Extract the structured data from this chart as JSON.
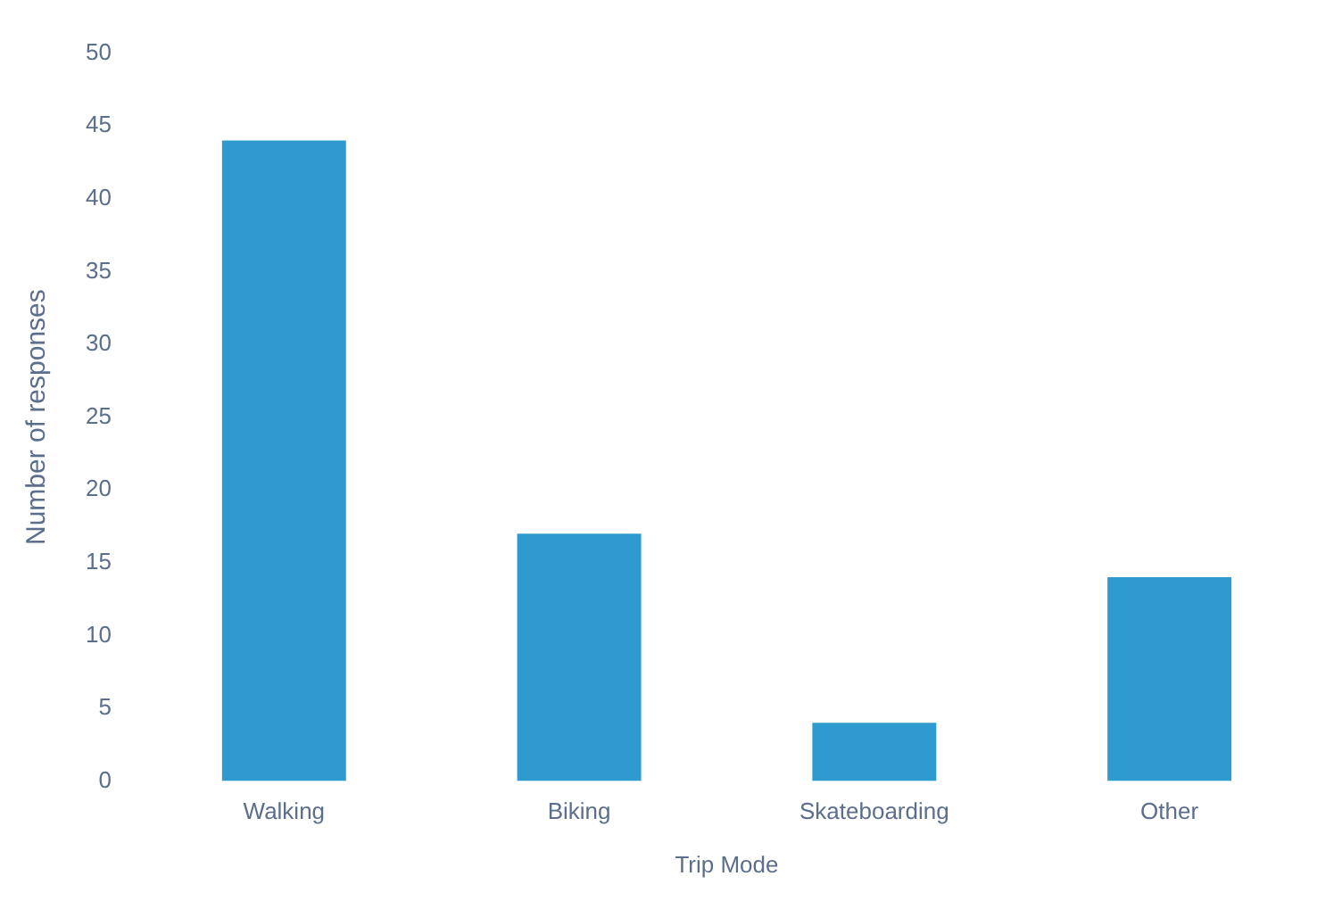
{
  "chart_data": {
    "type": "bar",
    "xlabel": "Trip Mode",
    "ylabel": "Number of responses",
    "categories": [
      "Walking",
      "Biking",
      "Skateboarding",
      "Other"
    ],
    "values": [
      44,
      17,
      4,
      14
    ],
    "color": "#2e9bd0",
    "ylim": [
      0,
      50
    ],
    "yticks": [
      0,
      5,
      10,
      15,
      20,
      25,
      30,
      35,
      40,
      45,
      50
    ],
    "grid": false,
    "legend": false
  }
}
